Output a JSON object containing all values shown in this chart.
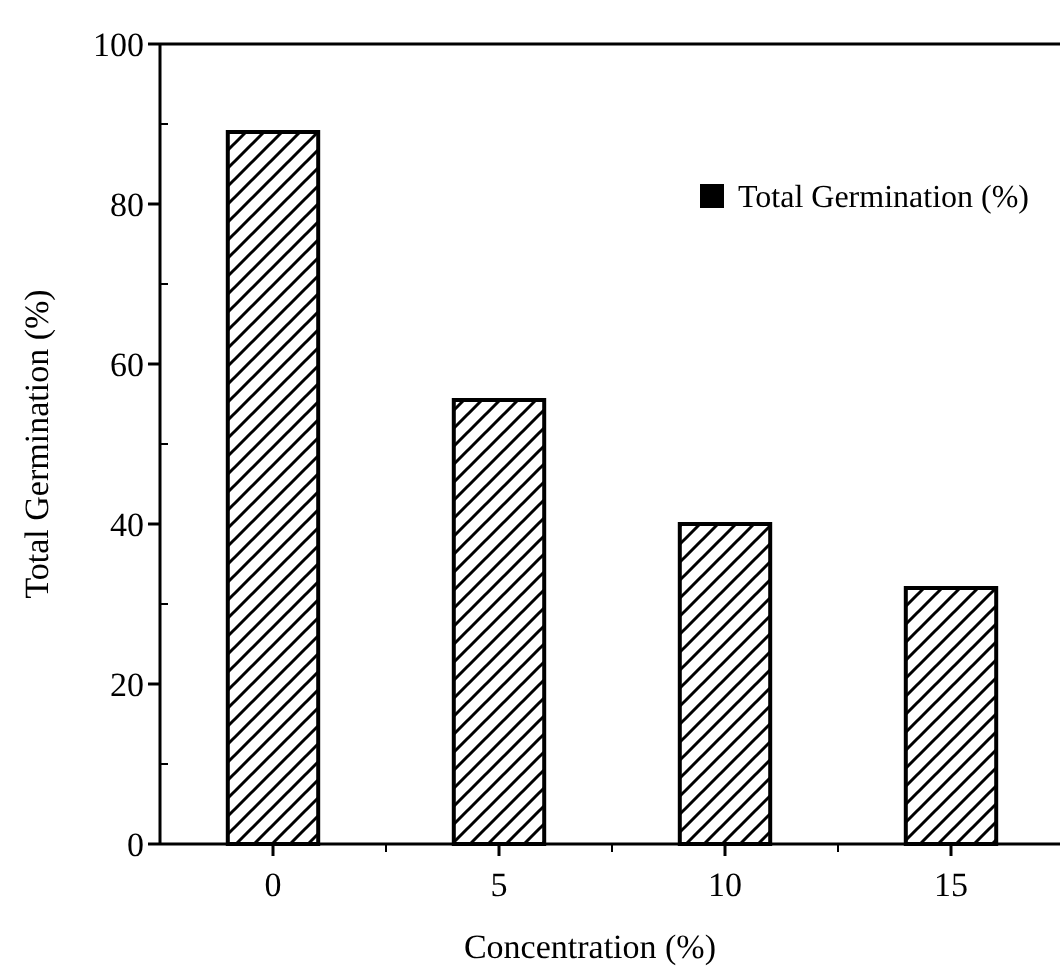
{
  "chart_data": {
    "type": "bar",
    "xlabel": "Concentration (%)",
    "ylabel": "Total Germination (%)",
    "categories": [
      "0",
      "5",
      "10",
      "15"
    ],
    "series": [
      {
        "name": "Total Germination (%)",
        "color": "#000000",
        "values": [
          89,
          55.5,
          40,
          32
        ]
      }
    ],
    "ylim": [
      0,
      100
    ],
    "yticks": [
      0,
      20,
      40,
      60,
      80,
      100
    ],
    "grid": false,
    "legend": "top right"
  }
}
